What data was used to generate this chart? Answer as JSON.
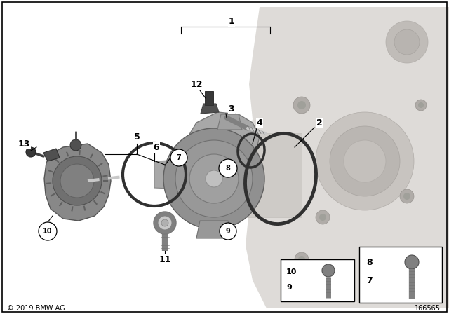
{
  "bg_color": "#ffffff",
  "border_color": "#000000",
  "copyright": "© 2019 BMW AG",
  "part_number": "166565",
  "engine_color": "#d0cdc8",
  "engine_edge": "#b0aca8",
  "pump_color": "#a8a8a8",
  "pump_edge": "#787878",
  "therm_color": "#909090",
  "therm_edge": "#606060",
  "dark_gray": "#505050",
  "mid_gray": "#808080",
  "light_gray": "#c8c8c8",
  "oring_color": "#303030",
  "label_fs": 9,
  "circle_label_fs": 7
}
